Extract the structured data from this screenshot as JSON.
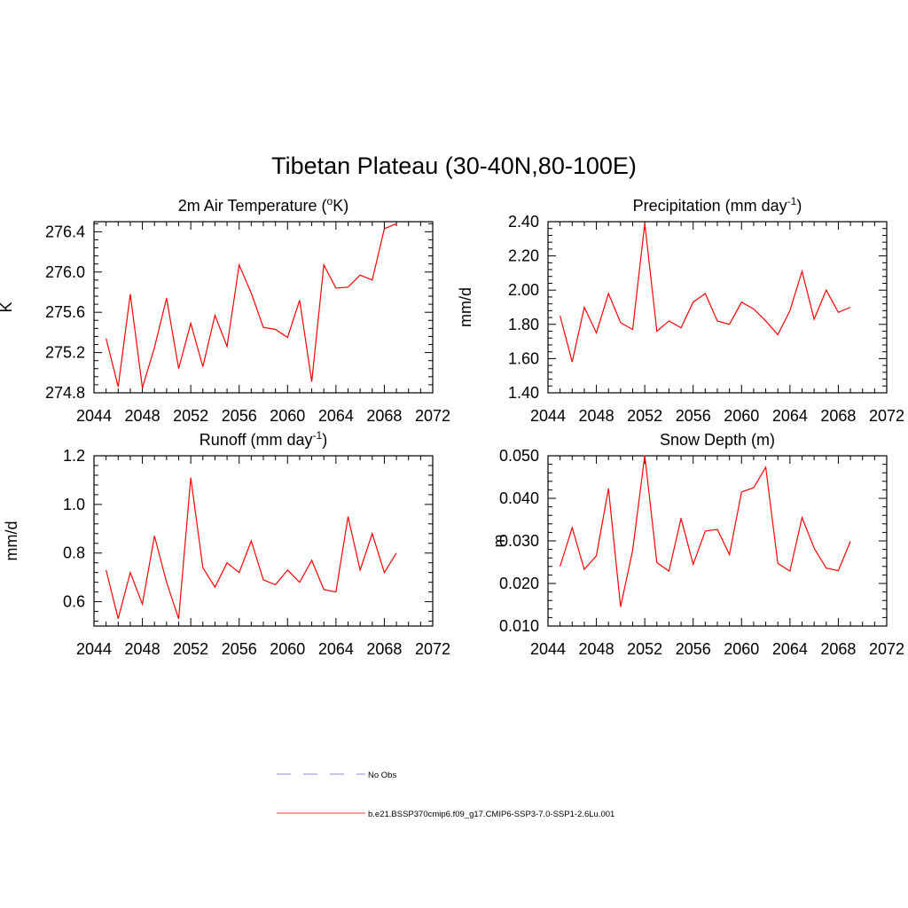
{
  "figure": {
    "title": "Tibetan Plateau (30-40N,80-100E)"
  },
  "legend": {
    "placement": "bottom-center",
    "entries": [
      {
        "label": "No Obs",
        "color": "#a0a0e8",
        "style": "dashed"
      },
      {
        "label": "b.e21.BSSP370cmip6.f09_g17.CMIP6-SSP3-7.0-SSP1-2.6Lu.001",
        "color": "#ff6060",
        "style": "solid"
      }
    ]
  },
  "chart_data": [
    {
      "type": "line",
      "title": "2m Air Temperature (",
      "title_sup": "o",
      "title_suffix": "K)",
      "ylabel": "K",
      "xlim": [
        2044,
        2072
      ],
      "ylim": [
        274.8,
        276.5
      ],
      "xticks": [
        2044,
        2048,
        2052,
        2056,
        2060,
        2064,
        2068,
        2072
      ],
      "yticks": [
        274.8,
        275.2,
        275.6,
        276.0,
        276.4
      ],
      "ytick_decimals": 1,
      "series_color": "#ff0000",
      "x": [
        2045,
        2046,
        2047,
        2048,
        2049,
        2050,
        2051,
        2052,
        2053,
        2054,
        2055,
        2056,
        2057,
        2058,
        2059,
        2060,
        2061,
        2062,
        2063,
        2064,
        2065,
        2066,
        2067,
        2068,
        2069
      ],
      "series": [
        {
          "values": [
            275.34,
            274.86,
            275.78,
            274.85,
            275.25,
            275.74,
            275.04,
            275.49,
            275.06,
            275.57,
            275.26,
            276.07,
            275.79,
            275.45,
            275.43,
            275.35,
            275.72,
            274.91,
            276.07,
            275.84,
            275.85,
            275.97,
            275.92,
            276.43,
            276.48
          ]
        }
      ]
    },
    {
      "type": "line",
      "title": "Precipitation (mm day",
      "title_sup": "-1",
      "title_suffix": ")",
      "ylabel": "mm/d",
      "xlim": [
        2044,
        2072
      ],
      "ylim": [
        1.4,
        2.4
      ],
      "xticks": [
        2044,
        2048,
        2052,
        2056,
        2060,
        2064,
        2068,
        2072
      ],
      "yticks": [
        1.4,
        1.6,
        1.8,
        2.0,
        2.2,
        2.4
      ],
      "ytick_decimals": 2,
      "series_color": "#ff0000",
      "x": [
        2045,
        2046,
        2047,
        2048,
        2049,
        2050,
        2051,
        2052,
        2053,
        2054,
        2055,
        2056,
        2057,
        2058,
        2059,
        2060,
        2061,
        2062,
        2063,
        2064,
        2065,
        2066,
        2067,
        2068,
        2069
      ],
      "series": [
        {
          "values": [
            1.85,
            1.58,
            1.9,
            1.75,
            1.98,
            1.81,
            1.77,
            2.39,
            1.76,
            1.82,
            1.78,
            1.93,
            1.98,
            1.82,
            1.8,
            1.93,
            1.89,
            1.82,
            1.74,
            1.88,
            2.11,
            1.83,
            2.0,
            1.87,
            1.9
          ]
        }
      ]
    },
    {
      "type": "line",
      "title": "Runoff (mm day",
      "title_sup": "-1",
      "title_suffix": ")",
      "ylabel": "mm/d",
      "xlim": [
        2044,
        2072
      ],
      "ylim": [
        0.5,
        1.2
      ],
      "xticks": [
        2044,
        2048,
        2052,
        2056,
        2060,
        2064,
        2068,
        2072
      ],
      "yticks": [
        0.6,
        0.8,
        1.0,
        1.2
      ],
      "ytick_decimals": 1,
      "series_color": "#ff0000",
      "x": [
        2045,
        2046,
        2047,
        2048,
        2049,
        2050,
        2051,
        2052,
        2053,
        2054,
        2055,
        2056,
        2057,
        2058,
        2059,
        2060,
        2061,
        2062,
        2063,
        2064,
        2065,
        2066,
        2067,
        2068,
        2069
      ],
      "series": [
        {
          "values": [
            0.73,
            0.53,
            0.72,
            0.59,
            0.87,
            0.68,
            0.53,
            1.11,
            0.74,
            0.66,
            0.76,
            0.72,
            0.85,
            0.69,
            0.67,
            0.73,
            0.68,
            0.77,
            0.65,
            0.64,
            0.95,
            0.73,
            0.88,
            0.72,
            0.8
          ]
        }
      ]
    },
    {
      "type": "line",
      "title": "Snow Depth (m)",
      "title_sup": "",
      "title_suffix": "",
      "ylabel": "m",
      "xlim": [
        2044,
        2072
      ],
      "ylim": [
        0.01,
        0.05
      ],
      "xticks": [
        2044,
        2048,
        2052,
        2056,
        2060,
        2064,
        2068,
        2072
      ],
      "yticks": [
        0.01,
        0.02,
        0.03,
        0.04,
        0.05
      ],
      "ytick_decimals": 3,
      "series_color": "#ff0000",
      "x": [
        2045,
        2046,
        2047,
        2048,
        2049,
        2050,
        2051,
        2052,
        2053,
        2054,
        2055,
        2056,
        2057,
        2058,
        2059,
        2060,
        2061,
        2062,
        2063,
        2064,
        2065,
        2066,
        2067,
        2068,
        2069
      ],
      "series": [
        {
          "values": [
            0.024,
            0.0331,
            0.0233,
            0.0265,
            0.0423,
            0.0145,
            0.0278,
            0.0501,
            0.0249,
            0.0229,
            0.0353,
            0.0245,
            0.0323,
            0.0327,
            0.0268,
            0.0415,
            0.0425,
            0.0473,
            0.0247,
            0.0229,
            0.0355,
            0.0283,
            0.0236,
            0.023,
            0.0299
          ]
        }
      ]
    }
  ]
}
